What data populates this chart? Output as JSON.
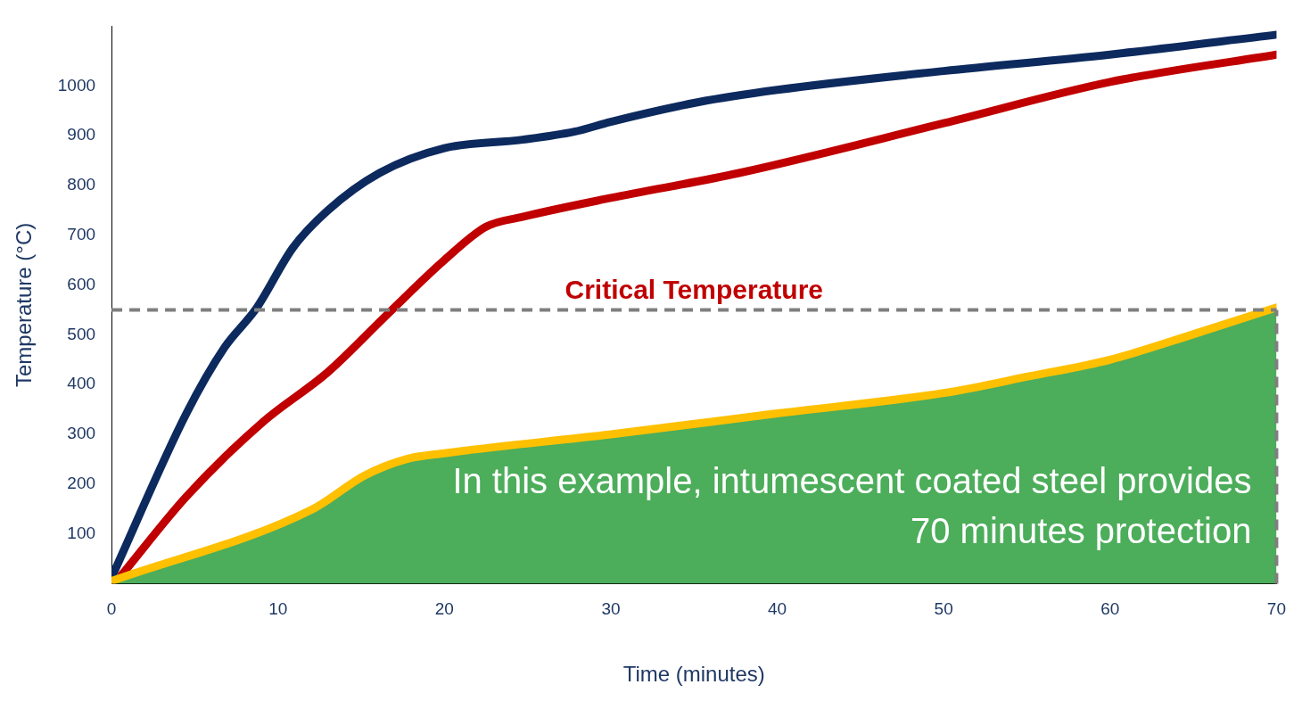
{
  "chart_data": {
    "type": "line",
    "xlabel": "Time (minutes)",
    "ylabel": "Temperature (°C)",
    "xlim": [
      0,
      70
    ],
    "xticks": [
      0,
      10,
      20,
      30,
      40,
      50,
      60,
      70
    ],
    "ylim": [
      0,
      1120
    ],
    "yticks": [
      100,
      200,
      300,
      400,
      500,
      600,
      700,
      800,
      900,
      1000
    ],
    "marker": "none",
    "legend": false,
    "grid": false,
    "series": [
      {
        "type": "area",
        "color": "#4cad5a",
        "x": [
          0,
          12.1,
          15.2,
          17.7,
          20,
          30,
          40,
          50,
          55.2,
          60,
          64.9,
          70
        ],
        "values": [
          5,
          150,
          217,
          250,
          262,
          300,
          342,
          383,
          417,
          450,
          500,
          555
        ]
      },
      {
        "color": "#0d2a5e",
        "x": [
          0,
          4.5,
          6.8,
          8.7,
          10.9,
          13,
          16.1,
          20,
          24.7,
          27.8,
          30,
          35.2,
          40,
          50,
          60,
          70
        ],
        "values": [
          12,
          342,
          475,
          553,
          675,
          750,
          825,
          875,
          892,
          908,
          928,
          967,
          992,
          1030,
          1063,
          1103
        ]
      },
      {
        "color": "#c00000",
        "x": [
          0.6,
          4.5,
          9.1,
          13,
          16.6,
          20,
          22.5,
          24.7,
          30,
          37.7,
          50,
          60,
          70
        ],
        "values": [
          17,
          175,
          325,
          425,
          542,
          650,
          717,
          737,
          775,
          825,
          925,
          1008,
          1063
        ]
      },
      {
        "color": "#ffc000",
        "x": [
          0,
          12.1,
          15.2,
          17.7,
          20,
          30,
          40,
          50,
          55.2,
          60,
          64.9,
          70
        ],
        "values": [
          5,
          150,
          217,
          250,
          262,
          300,
          342,
          383,
          417,
          450,
          500,
          555
        ]
      }
    ],
    "ref_lines": [
      {
        "axis": "y",
        "value": 550,
        "label": "Critical Temperature",
        "color": "#7f7f7f",
        "line_style": "dashed"
      },
      {
        "axis": "x",
        "value": 70,
        "label": null,
        "color": "#7f7f7f",
        "line_style": "dashed"
      }
    ],
    "annotations": [
      "In this example, intumescent coated steel provides 70 minutes protection"
    ]
  }
}
